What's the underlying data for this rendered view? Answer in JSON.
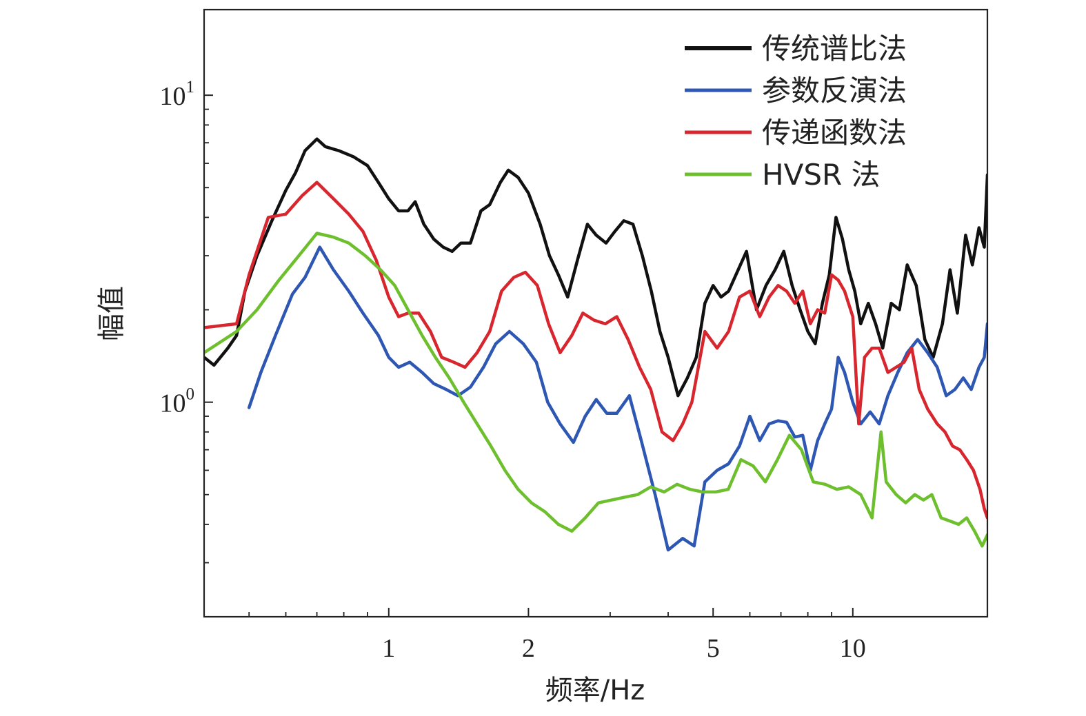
{
  "chart_data": {
    "type": "line",
    "xlabel": "频率/Hz",
    "ylabel": "幅值",
    "x_scale": "log",
    "y_scale": "log",
    "xlim": [
      0.4,
      19.5
    ],
    "ylim": [
      0.2,
      19
    ],
    "x_ticks": [
      {
        "value": 1,
        "label": "1"
      },
      {
        "value": 2,
        "label": "2"
      },
      {
        "value": 5,
        "label": "5"
      },
      {
        "value": 10,
        "label": "10"
      }
    ],
    "x_minor_ticks": [
      0.5,
      0.6,
      0.7,
      0.8,
      0.9,
      3,
      4,
      6,
      7,
      8,
      9
    ],
    "y_ticks": [
      {
        "value": 1,
        "base": "10",
        "exp": "0"
      },
      {
        "value": 10,
        "base": "10",
        "exp": "1"
      }
    ],
    "y_minor_ticks": [
      0.3,
      0.4,
      0.5,
      0.6,
      0.7,
      0.8,
      0.9,
      2,
      3,
      4,
      5,
      6,
      7,
      8,
      9
    ],
    "grid": false,
    "legend_position": "top-right",
    "series": [
      {
        "name": "传统谱比法",
        "color": "#111111",
        "points": [
          [
            0.4,
            1.4
          ],
          [
            0.42,
            1.32
          ],
          [
            0.45,
            1.5
          ],
          [
            0.47,
            1.65
          ],
          [
            0.49,
            2.3
          ],
          [
            0.52,
            3.0
          ],
          [
            0.56,
            3.9
          ],
          [
            0.6,
            4.9
          ],
          [
            0.63,
            5.6
          ],
          [
            0.66,
            6.6
          ],
          [
            0.7,
            7.2
          ],
          [
            0.73,
            6.8
          ],
          [
            0.78,
            6.6
          ],
          [
            0.84,
            6.3
          ],
          [
            0.9,
            5.9
          ],
          [
            0.95,
            5.2
          ],
          [
            1.0,
            4.6
          ],
          [
            1.05,
            4.2
          ],
          [
            1.1,
            4.2
          ],
          [
            1.14,
            4.5
          ],
          [
            1.19,
            3.8
          ],
          [
            1.25,
            3.4
          ],
          [
            1.31,
            3.2
          ],
          [
            1.37,
            3.1
          ],
          [
            1.43,
            3.3
          ],
          [
            1.5,
            3.3
          ],
          [
            1.58,
            4.2
          ],
          [
            1.65,
            4.4
          ],
          [
            1.74,
            5.2
          ],
          [
            1.81,
            5.7
          ],
          [
            1.9,
            5.4
          ],
          [
            2.0,
            4.8
          ],
          [
            2.12,
            3.8
          ],
          [
            2.22,
            3.0
          ],
          [
            2.32,
            2.6
          ],
          [
            2.43,
            2.2
          ],
          [
            2.55,
            2.9
          ],
          [
            2.68,
            3.8
          ],
          [
            2.8,
            3.5
          ],
          [
            2.94,
            3.3
          ],
          [
            3.07,
            3.6
          ],
          [
            3.21,
            3.9
          ],
          [
            3.36,
            3.8
          ],
          [
            3.52,
            3.0
          ],
          [
            3.68,
            2.3
          ],
          [
            3.84,
            1.7
          ],
          [
            4.0,
            1.4
          ],
          [
            4.2,
            1.05
          ],
          [
            4.4,
            1.2
          ],
          [
            4.6,
            1.4
          ],
          [
            4.8,
            2.1
          ],
          [
            5.0,
            2.4
          ],
          [
            5.2,
            2.2
          ],
          [
            5.4,
            2.3
          ],
          [
            5.6,
            2.6
          ],
          [
            5.9,
            3.1
          ],
          [
            6.2,
            2.0
          ],
          [
            6.5,
            2.4
          ],
          [
            6.8,
            2.7
          ],
          [
            7.1,
            3.1
          ],
          [
            7.4,
            2.4
          ],
          [
            7.7,
            2.0
          ],
          [
            8.0,
            1.7
          ],
          [
            8.3,
            1.55
          ],
          [
            8.6,
            2.1
          ],
          [
            8.9,
            2.6
          ],
          [
            9.2,
            4.0
          ],
          [
            9.5,
            3.4
          ],
          [
            9.8,
            2.7
          ],
          [
            10.1,
            2.3
          ],
          [
            10.4,
            1.8
          ],
          [
            10.8,
            2.1
          ],
          [
            11.2,
            1.8
          ],
          [
            11.6,
            1.5
          ],
          [
            12.1,
            2.1
          ],
          [
            12.6,
            2.0
          ],
          [
            13.1,
            2.8
          ],
          [
            13.7,
            2.4
          ],
          [
            14.3,
            1.6
          ],
          [
            14.9,
            1.4
          ],
          [
            15.6,
            1.8
          ],
          [
            16.2,
            2.7
          ],
          [
            16.8,
            1.95
          ],
          [
            17.5,
            3.5
          ],
          [
            18.1,
            2.8
          ],
          [
            18.7,
            3.7
          ],
          [
            19.2,
            3.2
          ],
          [
            19.5,
            5.5
          ]
        ]
      },
      {
        "name": "参数反演法",
        "color": "#2e57b3",
        "points": [
          [
            0.5,
            0.96
          ],
          [
            0.53,
            1.25
          ],
          [
            0.57,
            1.65
          ],
          [
            0.62,
            2.25
          ],
          [
            0.66,
            2.55
          ],
          [
            0.71,
            3.2
          ],
          [
            0.76,
            2.7
          ],
          [
            0.82,
            2.3
          ],
          [
            0.88,
            1.95
          ],
          [
            0.95,
            1.65
          ],
          [
            1.0,
            1.4
          ],
          [
            1.05,
            1.3
          ],
          [
            1.11,
            1.35
          ],
          [
            1.18,
            1.25
          ],
          [
            1.25,
            1.15
          ],
          [
            1.33,
            1.1
          ],
          [
            1.41,
            1.05
          ],
          [
            1.5,
            1.12
          ],
          [
            1.6,
            1.3
          ],
          [
            1.7,
            1.55
          ],
          [
            1.82,
            1.7
          ],
          [
            1.95,
            1.55
          ],
          [
            2.08,
            1.35
          ],
          [
            2.2,
            1.0
          ],
          [
            2.34,
            0.85
          ],
          [
            2.5,
            0.74
          ],
          [
            2.65,
            0.9
          ],
          [
            2.8,
            1.02
          ],
          [
            2.95,
            0.92
          ],
          [
            3.1,
            0.92
          ],
          [
            3.3,
            1.05
          ],
          [
            3.5,
            0.75
          ],
          [
            3.75,
            0.5
          ],
          [
            4.0,
            0.33
          ],
          [
            4.3,
            0.36
          ],
          [
            4.55,
            0.34
          ],
          [
            4.8,
            0.55
          ],
          [
            5.1,
            0.6
          ],
          [
            5.4,
            0.63
          ],
          [
            5.7,
            0.72
          ],
          [
            6.0,
            0.9
          ],
          [
            6.3,
            0.75
          ],
          [
            6.6,
            0.85
          ],
          [
            6.9,
            0.87
          ],
          [
            7.2,
            0.86
          ],
          [
            7.5,
            0.77
          ],
          [
            7.8,
            0.78
          ],
          [
            8.1,
            0.6
          ],
          [
            8.4,
            0.75
          ],
          [
            8.7,
            0.85
          ],
          [
            9.0,
            0.95
          ],
          [
            9.3,
            1.4
          ],
          [
            9.6,
            1.25
          ],
          [
            10.0,
            1.0
          ],
          [
            10.4,
            0.85
          ],
          [
            10.9,
            0.93
          ],
          [
            11.4,
            0.85
          ],
          [
            11.9,
            1.05
          ],
          [
            12.5,
            1.25
          ],
          [
            13.1,
            1.45
          ],
          [
            13.8,
            1.6
          ],
          [
            14.5,
            1.45
          ],
          [
            15.2,
            1.3
          ],
          [
            15.9,
            1.05
          ],
          [
            16.6,
            1.1
          ],
          [
            17.3,
            1.2
          ],
          [
            18.0,
            1.1
          ],
          [
            18.7,
            1.3
          ],
          [
            19.2,
            1.4
          ],
          [
            19.5,
            1.8
          ]
        ]
      },
      {
        "name": "传递函数法",
        "color": "#d8262e",
        "points": [
          [
            0.4,
            1.75
          ],
          [
            0.47,
            1.8
          ],
          [
            0.5,
            2.6
          ],
          [
            0.55,
            4.0
          ],
          [
            0.6,
            4.1
          ],
          [
            0.65,
            4.7
          ],
          [
            0.7,
            5.2
          ],
          [
            0.76,
            4.6
          ],
          [
            0.82,
            4.1
          ],
          [
            0.88,
            3.6
          ],
          [
            0.94,
            2.9
          ],
          [
            1.0,
            2.2
          ],
          [
            1.05,
            1.9
          ],
          [
            1.1,
            1.95
          ],
          [
            1.16,
            1.95
          ],
          [
            1.23,
            1.7
          ],
          [
            1.3,
            1.4
          ],
          [
            1.38,
            1.35
          ],
          [
            1.46,
            1.3
          ],
          [
            1.55,
            1.45
          ],
          [
            1.65,
            1.7
          ],
          [
            1.75,
            2.3
          ],
          [
            1.86,
            2.55
          ],
          [
            1.97,
            2.65
          ],
          [
            2.09,
            2.4
          ],
          [
            2.21,
            1.8
          ],
          [
            2.34,
            1.45
          ],
          [
            2.48,
            1.65
          ],
          [
            2.62,
            1.95
          ],
          [
            2.77,
            1.85
          ],
          [
            2.93,
            1.8
          ],
          [
            3.1,
            1.9
          ],
          [
            3.28,
            1.6
          ],
          [
            3.47,
            1.3
          ],
          [
            3.67,
            1.1
          ],
          [
            3.88,
            0.8
          ],
          [
            4.1,
            0.75
          ],
          [
            4.3,
            0.85
          ],
          [
            4.5,
            1.0
          ],
          [
            4.8,
            1.7
          ],
          [
            5.1,
            1.5
          ],
          [
            5.4,
            1.7
          ],
          [
            5.7,
            2.2
          ],
          [
            6.0,
            2.3
          ],
          [
            6.3,
            1.9
          ],
          [
            6.6,
            2.2
          ],
          [
            6.9,
            2.4
          ],
          [
            7.2,
            2.3
          ],
          [
            7.5,
            2.1
          ],
          [
            7.8,
            2.3
          ],
          [
            8.1,
            1.8
          ],
          [
            8.4,
            2.0
          ],
          [
            8.7,
            1.95
          ],
          [
            9.0,
            2.6
          ],
          [
            9.3,
            2.5
          ],
          [
            9.6,
            2.3
          ],
          [
            10.0,
            1.9
          ],
          [
            10.3,
            0.85
          ],
          [
            10.6,
            1.4
          ],
          [
            11.0,
            1.5
          ],
          [
            11.4,
            1.5
          ],
          [
            11.9,
            1.25
          ],
          [
            12.4,
            1.3
          ],
          [
            12.9,
            1.35
          ],
          [
            13.4,
            1.5
          ],
          [
            13.9,
            1.1
          ],
          [
            14.5,
            0.95
          ],
          [
            15.2,
            0.85
          ],
          [
            15.8,
            0.8
          ],
          [
            16.4,
            0.72
          ],
          [
            17.0,
            0.7
          ],
          [
            17.6,
            0.65
          ],
          [
            18.2,
            0.6
          ],
          [
            18.8,
            0.52
          ],
          [
            19.2,
            0.45
          ],
          [
            19.5,
            0.42
          ]
        ]
      },
      {
        "name": "HVSR 法",
        "color": "#6dbf2e",
        "points": [
          [
            0.4,
            1.45
          ],
          [
            0.47,
            1.7
          ],
          [
            0.52,
            2.0
          ],
          [
            0.58,
            2.5
          ],
          [
            0.64,
            3.0
          ],
          [
            0.7,
            3.55
          ],
          [
            0.76,
            3.45
          ],
          [
            0.82,
            3.3
          ],
          [
            0.89,
            3.0
          ],
          [
            0.96,
            2.7
          ],
          [
            1.03,
            2.4
          ],
          [
            1.1,
            2.0
          ],
          [
            1.18,
            1.65
          ],
          [
            1.26,
            1.4
          ],
          [
            1.35,
            1.2
          ],
          [
            1.45,
            1.0
          ],
          [
            1.55,
            0.85
          ],
          [
            1.66,
            0.72
          ],
          [
            1.78,
            0.6
          ],
          [
            1.9,
            0.52
          ],
          [
            2.03,
            0.47
          ],
          [
            2.17,
            0.44
          ],
          [
            2.32,
            0.4
          ],
          [
            2.48,
            0.38
          ],
          [
            2.65,
            0.42
          ],
          [
            2.83,
            0.47
          ],
          [
            3.02,
            0.48
          ],
          [
            3.22,
            0.49
          ],
          [
            3.44,
            0.5
          ],
          [
            3.67,
            0.53
          ],
          [
            3.92,
            0.51
          ],
          [
            4.18,
            0.54
          ],
          [
            4.46,
            0.52
          ],
          [
            4.75,
            0.51
          ],
          [
            5.06,
            0.51
          ],
          [
            5.39,
            0.52
          ],
          [
            5.74,
            0.65
          ],
          [
            6.1,
            0.62
          ],
          [
            6.48,
            0.55
          ],
          [
            6.88,
            0.65
          ],
          [
            7.3,
            0.78
          ],
          [
            7.75,
            0.7
          ],
          [
            8.22,
            0.55
          ],
          [
            8.72,
            0.54
          ],
          [
            9.24,
            0.52
          ],
          [
            9.8,
            0.53
          ],
          [
            10.4,
            0.5
          ],
          [
            11.0,
            0.42
          ],
          [
            11.5,
            0.8
          ],
          [
            11.8,
            0.55
          ],
          [
            12.4,
            0.5
          ],
          [
            13.0,
            0.47
          ],
          [
            13.6,
            0.5
          ],
          [
            14.2,
            0.48
          ],
          [
            14.8,
            0.5
          ],
          [
            15.5,
            0.42
          ],
          [
            16.2,
            0.41
          ],
          [
            16.9,
            0.4
          ],
          [
            17.6,
            0.42
          ],
          [
            18.3,
            0.38
          ],
          [
            19.0,
            0.34
          ],
          [
            19.5,
            0.37
          ]
        ]
      }
    ]
  }
}
